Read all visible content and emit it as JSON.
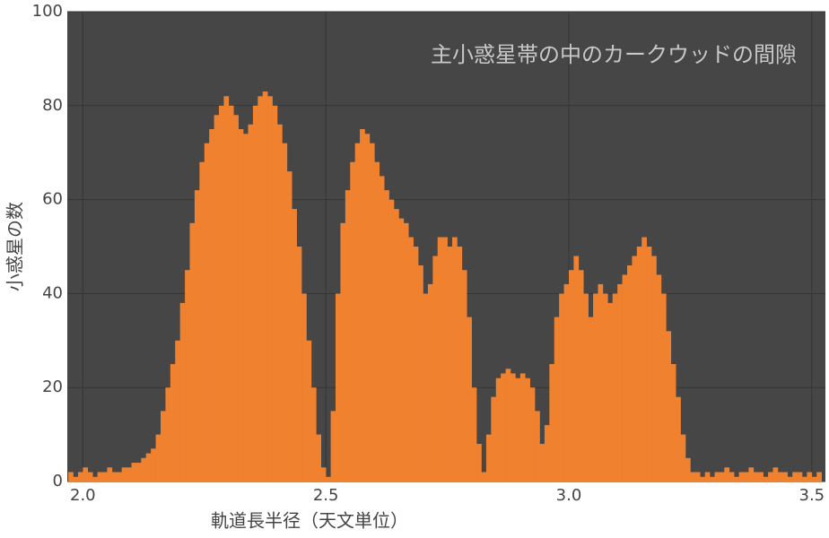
{
  "chart_data": {
    "type": "histogram",
    "annotation": "主小惑星帯の中のカークウッドの間隙",
    "xlabel": "軌道長半径（天文単位）",
    "ylabel": "小惑星の数",
    "color": "#f0812f",
    "background": "#464646",
    "grid": true,
    "xlim": [
      1.968,
      3.528
    ],
    "ylim": [
      0,
      100
    ],
    "xticks": [
      {
        "value": 2.0,
        "label": "2.0"
      },
      {
        "value": 2.5,
        "label": "2.5"
      },
      {
        "value": 3.0,
        "label": "3.0"
      },
      {
        "value": 3.5,
        "label": "3.5"
      }
    ],
    "yticks": [
      0,
      20,
      40,
      60,
      80,
      100
    ],
    "bins": [
      1.97,
      1.98,
      1.99,
      2.0,
      2.01,
      2.02,
      2.03,
      2.04,
      2.05,
      2.06,
      2.07,
      2.08,
      2.09,
      2.1,
      2.11,
      2.12,
      2.13,
      2.14,
      2.15,
      2.16,
      2.17,
      2.18,
      2.19,
      2.2,
      2.21,
      2.22,
      2.23,
      2.24,
      2.25,
      2.26,
      2.27,
      2.28,
      2.29,
      2.3,
      2.31,
      2.32,
      2.33,
      2.34,
      2.35,
      2.36,
      2.37,
      2.38,
      2.39,
      2.4,
      2.41,
      2.42,
      2.43,
      2.44,
      2.45,
      2.46,
      2.47,
      2.48,
      2.49,
      2.5,
      2.51,
      2.52,
      2.53,
      2.54,
      2.55,
      2.56,
      2.57,
      2.58,
      2.59,
      2.6,
      2.61,
      2.62,
      2.63,
      2.64,
      2.65,
      2.66,
      2.67,
      2.68,
      2.69,
      2.7,
      2.71,
      2.72,
      2.73,
      2.74,
      2.75,
      2.76,
      2.77,
      2.78,
      2.79,
      2.8,
      2.81,
      2.82,
      2.83,
      2.84,
      2.85,
      2.86,
      2.87,
      2.88,
      2.89,
      2.9,
      2.91,
      2.92,
      2.93,
      2.94,
      2.95,
      2.96,
      2.97,
      2.98,
      2.99,
      3.0,
      3.01,
      3.02,
      3.03,
      3.04,
      3.05,
      3.06,
      3.07,
      3.08,
      3.09,
      3.1,
      3.11,
      3.12,
      3.13,
      3.14,
      3.15,
      3.16,
      3.17,
      3.18,
      3.19,
      3.2,
      3.21,
      3.22,
      3.23,
      3.24,
      3.25,
      3.26,
      3.27,
      3.28,
      3.29,
      3.3,
      3.31,
      3.32,
      3.33,
      3.34,
      3.35,
      3.36,
      3.37,
      3.38,
      3.39,
      3.4,
      3.41,
      3.42,
      3.43,
      3.44,
      3.45,
      3.46,
      3.47,
      3.48,
      3.49,
      3.5,
      3.51,
      3.52
    ],
    "counts": [
      2,
      1,
      2,
      3,
      2,
      1,
      2,
      2,
      3,
      2,
      2,
      3,
      3,
      4,
      4,
      5,
      6,
      7,
      10,
      15,
      20,
      25,
      30,
      38,
      45,
      55,
      62,
      68,
      72,
      75,
      78,
      80,
      82,
      80,
      78,
      75,
      74,
      76,
      80,
      82,
      83,
      82,
      80,
      76,
      72,
      66,
      58,
      50,
      40,
      30,
      20,
      10,
      3,
      1,
      15,
      40,
      55,
      62,
      68,
      72,
      75,
      74,
      72,
      68,
      65,
      62,
      60,
      58,
      56,
      55,
      52,
      50,
      46,
      40,
      42,
      48,
      52,
      52,
      50,
      52,
      50,
      45,
      35,
      20,
      8,
      2,
      10,
      18,
      22,
      23,
      24,
      23,
      22,
      23,
      22,
      20,
      15,
      8,
      12,
      25,
      35,
      40,
      42,
      45,
      48,
      45,
      40,
      35,
      40,
      42,
      40,
      38,
      40,
      42,
      44,
      46,
      48,
      50,
      52,
      50,
      48,
      44,
      40,
      32,
      25,
      18,
      10,
      5,
      2,
      2,
      1,
      2,
      1,
      2,
      2,
      3,
      2,
      1,
      2,
      2,
      3,
      2,
      2,
      1,
      2,
      3,
      2,
      2,
      1,
      2,
      2,
      1,
      2,
      1,
      2
    ]
  }
}
